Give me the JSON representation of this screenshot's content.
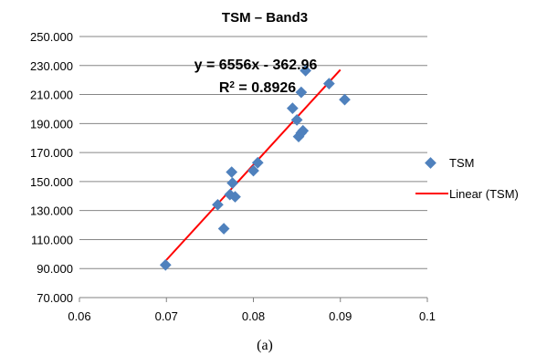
{
  "caption": "(a)",
  "chart_data": {
    "type": "scatter",
    "title": "TSM – Band3",
    "xlabel": "",
    "ylabel": "",
    "xlim": [
      0.06,
      0.1
    ],
    "ylim": [
      70,
      250
    ],
    "x_ticks": [
      0.06,
      0.07,
      0.08,
      0.09,
      0.1
    ],
    "x_tick_labels": [
      "0.06",
      "0.07",
      "0.08",
      "0.09",
      "0.1"
    ],
    "y_ticks": [
      70,
      90,
      110,
      130,
      150,
      170,
      190,
      210,
      230,
      250
    ],
    "y_tick_labels": [
      "70.000",
      "90.000",
      "110.000",
      "130.000",
      "150.000",
      "170.000",
      "190.000",
      "210.000",
      "230.000",
      "250.000"
    ],
    "grid": "horizontal",
    "legend_position": "right",
    "series": [
      {
        "name": "TSM",
        "marker": "diamond",
        "color": "#4F81BD",
        "x": [
          0.0699,
          0.0766,
          0.0759,
          0.0773,
          0.0779,
          0.0776,
          0.0775,
          0.08,
          0.0805,
          0.0845,
          0.085,
          0.0852,
          0.0855,
          0.0857,
          0.0855,
          0.086,
          0.0887,
          0.0905
        ],
        "y": [
          92.5,
          117.5,
          134.0,
          141.0,
          139.5,
          149.0,
          156.5,
          157.5,
          163.0,
          200.5,
          192.5,
          181.0,
          183.5,
          185.0,
          211.5,
          226.5,
          217.5,
          206.5
        ]
      }
    ],
    "trendline": {
      "name": "Linear (TSM)",
      "color": "#FF0000",
      "slope": 6556,
      "intercept": -362.96,
      "x_range": [
        0.07,
        0.09
      ],
      "equation_text": "y = 6556x - 362.96",
      "r2_prefix": "R",
      "r2_suffix": " = 0.8926"
    }
  }
}
